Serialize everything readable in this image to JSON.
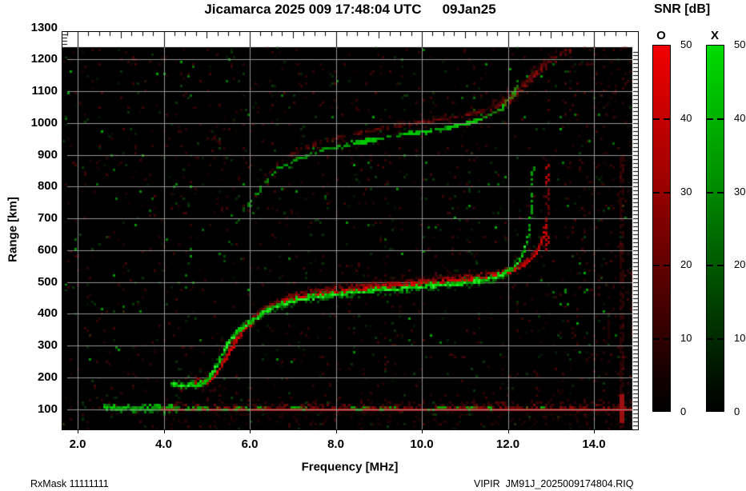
{
  "title": {
    "left": "Jicamarca 2025 009 17:48:04 UTC",
    "right": "09Jan25"
  },
  "axes": {
    "x_label": "Frequency [MHz]",
    "y_label": "Range [km]",
    "x_tick_values": [
      2,
      4,
      6,
      8,
      10,
      12,
      14
    ],
    "x_tick_labels": [
      "2.0",
      "4.0",
      "6.0",
      "8.0",
      "10.0",
      "12.0",
      "14.0"
    ],
    "y_tick_values": [
      100,
      200,
      300,
      400,
      500,
      600,
      700,
      800,
      900,
      1000,
      1100,
      1200,
      1300
    ],
    "x_range_mhz": [
      1.65,
      14.9
    ],
    "y_range_km": [
      36,
      1287
    ],
    "grid": true
  },
  "colorbar": {
    "title": "SNR [dB]",
    "tick_values": [
      0,
      10,
      20,
      30,
      40,
      50
    ],
    "bars": [
      {
        "label": "O",
        "meaning": "O-mode echo",
        "top_color": "#ee0000"
      },
      {
        "label": "X",
        "meaning": "X-mode echo",
        "top_color": "#00d800"
      }
    ]
  },
  "footer": {
    "left": "RxMask 11111111",
    "right": "VIPIR  JM91J_2025009174804.RIQ"
  },
  "chart_data": {
    "type": "heatmap",
    "description": "VIPIR digital ionogram: echo SNR (0-50 dB) vs sounding frequency and virtual range; red = O-mode, green = X-mode",
    "x_unit": "MHz",
    "y_unit": "km",
    "z_unit": "dB",
    "z_range": [
      0,
      50
    ],
    "x_gridlines_mhz": [
      2,
      4,
      6,
      8,
      10,
      12,
      14
    ],
    "y_gridlines_km": [
      100,
      200,
      300,
      400,
      500,
      600,
      700,
      800,
      900,
      1000,
      1100,
      1200
    ],
    "x_trace_green": [
      [
        4.16,
        183
      ],
      [
        4.45,
        179
      ],
      [
        4.75,
        180
      ],
      [
        4.95,
        190
      ],
      [
        5.12,
        220
      ],
      [
        5.3,
        268
      ],
      [
        5.5,
        318
      ],
      [
        5.72,
        352
      ],
      [
        6.0,
        378
      ],
      [
        6.3,
        407
      ],
      [
        6.65,
        430
      ],
      [
        7.1,
        447
      ],
      [
        7.6,
        458
      ],
      [
        8.1,
        466
      ],
      [
        8.6,
        473
      ],
      [
        9.1,
        479
      ],
      [
        9.6,
        484
      ],
      [
        10.1,
        489
      ],
      [
        10.6,
        495
      ],
      [
        11.0,
        501
      ],
      [
        11.4,
        509
      ],
      [
        11.75,
        521
      ],
      [
        12.0,
        538
      ],
      [
        12.2,
        562
      ],
      [
        12.33,
        595
      ],
      [
        12.42,
        635
      ],
      [
        12.47,
        672
      ],
      [
        12.5,
        710
      ]
    ],
    "o_trace_red": [
      [
        4.7,
        184
      ],
      [
        4.95,
        188
      ],
      [
        5.15,
        205
      ],
      [
        5.35,
        245
      ],
      [
        5.58,
        300
      ],
      [
        5.82,
        348
      ],
      [
        6.1,
        390
      ],
      [
        6.45,
        421
      ],
      [
        6.9,
        447
      ],
      [
        7.4,
        462
      ],
      [
        7.9,
        472
      ],
      [
        8.4,
        480
      ],
      [
        8.9,
        487
      ],
      [
        9.4,
        493
      ],
      [
        9.9,
        498
      ],
      [
        10.4,
        503
      ],
      [
        10.9,
        508
      ],
      [
        11.3,
        514
      ],
      [
        11.7,
        523
      ],
      [
        12.0,
        534
      ],
      [
        12.3,
        552
      ],
      [
        12.55,
        578
      ],
      [
        12.7,
        608
      ],
      [
        12.8,
        648
      ],
      [
        12.85,
        690
      ]
    ],
    "x_critical_mhz": 12.53,
    "x_critical_dash_segments_km": [
      [
        718,
        745
      ],
      [
        762,
        788
      ],
      [
        800,
        828
      ],
      [
        842,
        872
      ]
    ],
    "o_critical_mhz": 12.88,
    "o_critical_extent_km": [
      610,
      888
    ],
    "second_hop": {
      "multiple": 2,
      "green_f_range_mhz": [
        5.3,
        12.25
      ],
      "green_bright_segments_mhz": [
        [
          8.35,
          8.95
        ],
        [
          9.55,
          10.15
        ],
        [
          10.55,
          11.35
        ],
        [
          11.75,
          12.15
        ]
      ],
      "red_cloud_f_range_mhz": [
        6.3,
        13.45
      ],
      "red_cloud_extension": [
        [
          12.2,
          1092
        ],
        [
          12.6,
          1152
        ],
        [
          13.0,
          1196
        ],
        [
          13.45,
          1230
        ]
      ]
    },
    "e_region_band": {
      "range_km": [
        85,
        140
      ],
      "red_line_km": 100,
      "red_f_range_mhz": [
        3.9,
        14.88
      ],
      "green_cluster_f_range_mhz": [
        2.55,
        4.35
      ],
      "green_scatter_clusters_mhz": [
        [
          4.5,
          5.05
        ],
        [
          5.15,
          5.5
        ],
        [
          5.6,
          6.35
        ],
        [
          6.9,
          7.35
        ],
        [
          8.3,
          8.75
        ],
        [
          9.0,
          9.35
        ],
        [
          10.15,
          10.6
        ],
        [
          10.8,
          11.3
        ],
        [
          11.5,
          11.65
        ],
        [
          12.35,
          12.5
        ],
        [
          12.7,
          12.9
        ]
      ]
    },
    "noise_columns_mhz": [
      14.3,
      14.62,
      14.87
    ],
    "background_noise": "sparse dark red and dark green speckle over black"
  }
}
